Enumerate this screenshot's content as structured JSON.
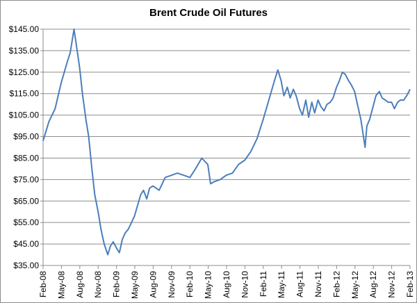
{
  "chart_data": {
    "type": "line",
    "title": "Brent Crude Oil Futures",
    "xlabel": "",
    "ylabel": "",
    "ylim": [
      35,
      145
    ],
    "y_ticks": [
      "$35.00",
      "$45.00",
      "$55.00",
      "$65.00",
      "$75.00",
      "$85.00",
      "$95.00",
      "$105.00",
      "$115.00",
      "$125.00",
      "$135.00",
      "$145.00"
    ],
    "x_ticks": [
      "Feb-08",
      "May-08",
      "Aug-08",
      "Nov-08",
      "Feb-09",
      "May-09",
      "Aug-09",
      "Nov-09",
      "Feb-10",
      "May-10",
      "Aug-10",
      "Nov-10",
      "Feb-11",
      "May-11",
      "Aug-11",
      "Nov-11",
      "Feb-12",
      "May-12",
      "Aug-12",
      "Nov-12",
      "Feb-13"
    ],
    "grid": true,
    "line_color": "#4a7ebb",
    "series": [
      {
        "x": [
          "2008-02-01",
          "2008-03-01",
          "2008-04-01",
          "2008-05-01",
          "2008-06-01",
          "2008-06-15",
          "2008-07-04",
          "2008-07-15",
          "2008-08-01",
          "2008-08-15",
          "2008-09-01",
          "2008-09-15",
          "2008-10-01",
          "2008-10-15",
          "2008-11-01",
          "2008-11-15",
          "2008-12-01",
          "2008-12-19",
          "2009-01-01",
          "2009-01-15",
          "2009-02-01",
          "2009-02-15",
          "2009-03-01",
          "2009-03-15",
          "2009-04-01",
          "2009-05-01",
          "2009-06-01",
          "2009-06-15",
          "2009-07-01",
          "2009-07-15",
          "2009-08-01",
          "2009-09-01",
          "2009-10-01",
          "2009-11-01",
          "2009-12-01",
          "2010-01-01",
          "2010-02-01",
          "2010-03-01",
          "2010-04-01",
          "2010-05-01",
          "2010-05-15",
          "2010-06-01",
          "2010-07-01",
          "2010-08-01",
          "2010-09-01",
          "2010-10-01",
          "2010-11-01",
          "2010-12-01",
          "2011-01-01",
          "2011-02-01",
          "2011-03-01",
          "2011-04-01",
          "2011-04-15",
          "2011-05-01",
          "2011-05-15",
          "2011-06-01",
          "2011-06-15",
          "2011-07-01",
          "2011-07-15",
          "2011-08-01",
          "2011-08-15",
          "2011-09-01",
          "2011-09-15",
          "2011-10-01",
          "2011-10-15",
          "2011-11-01",
          "2011-11-15",
          "2011-12-01",
          "2011-12-15",
          "2012-01-01",
          "2012-01-15",
          "2012-02-01",
          "2012-02-15",
          "2012-03-01",
          "2012-03-15",
          "2012-04-01",
          "2012-04-15",
          "2012-05-01",
          "2012-05-15",
          "2012-06-01",
          "2012-06-22",
          "2012-07-01",
          "2012-07-15",
          "2012-08-01",
          "2012-08-15",
          "2012-09-01",
          "2012-09-15",
          "2012-10-01",
          "2012-10-15",
          "2012-11-01",
          "2012-11-15",
          "2012-12-01",
          "2012-12-15",
          "2013-01-01",
          "2013-01-15",
          "2013-02-01"
        ],
        "y": [
          93,
          102,
          108,
          120,
          130,
          134,
          145,
          138,
          127,
          115,
          103,
          95,
          80,
          68,
          60,
          52,
          45,
          40,
          44,
          46,
          43,
          41,
          47,
          50,
          52,
          58,
          68,
          70,
          66,
          71,
          72,
          70,
          76,
          77,
          78,
          77,
          76,
          80,
          85,
          82,
          73,
          74,
          75,
          77,
          78,
          82,
          84,
          88,
          94,
          103,
          112,
          122,
          126,
          121,
          114,
          118,
          113,
          117,
          114,
          108,
          105,
          112,
          104,
          111,
          106,
          112,
          109,
          107,
          110,
          111,
          113,
          118,
          121,
          125,
          124,
          121,
          119,
          116,
          110,
          103,
          90,
          100,
          103,
          109,
          114,
          116,
          113,
          112,
          111,
          111,
          108,
          111,
          112,
          112,
          114,
          117
        ]
      }
    ]
  }
}
